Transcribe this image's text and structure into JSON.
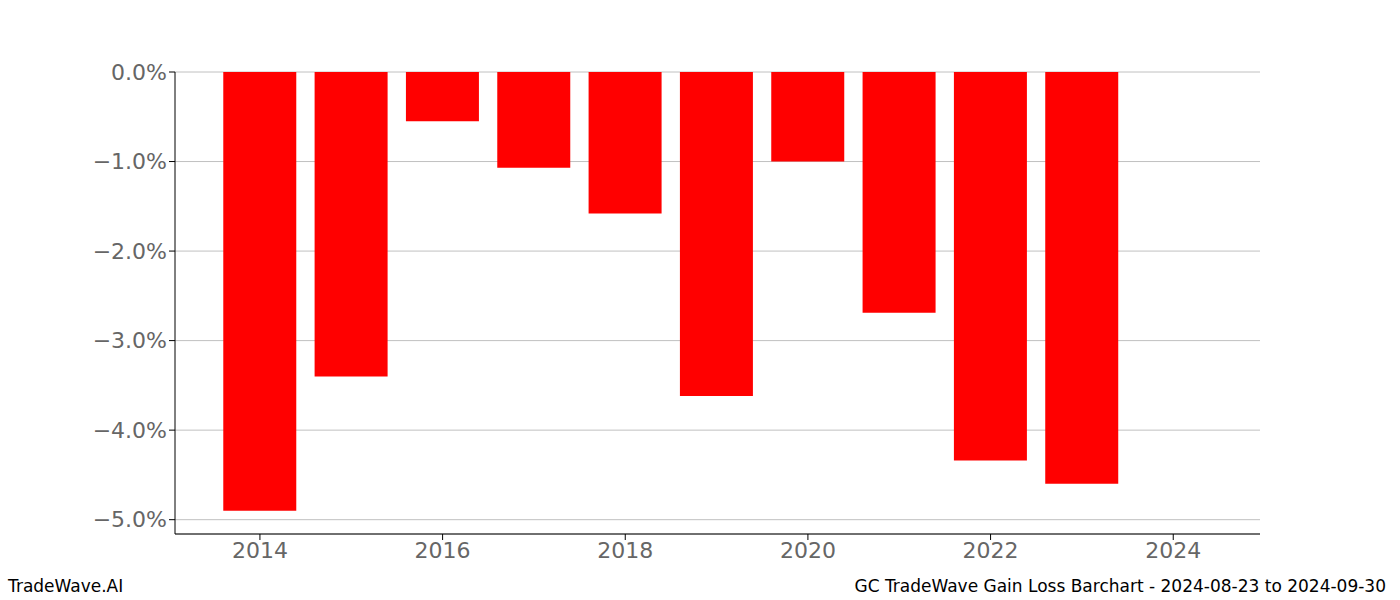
{
  "chart_data": {
    "type": "bar",
    "title": "GC TradeWave Gain Loss Barchart - 2024-08-23 to 2024-09-30",
    "annotation": "TradeWave.AI",
    "x": [
      2014,
      2015,
      2016,
      2017,
      2018,
      2019,
      2020,
      2021,
      2022,
      2023
    ],
    "values": [
      -4.9,
      -3.4,
      -0.55,
      -1.07,
      -1.58,
      -3.62,
      -1.0,
      -2.69,
      -4.34,
      -4.6
    ],
    "color": "#ff0000",
    "xlim": [
      2013.07,
      2024.95
    ],
    "xticks": [
      2014,
      2016,
      2018,
      2020,
      2022,
      2024
    ],
    "ylim": [
      -5.16,
      0
    ],
    "yticks": [
      {
        "value": 0,
        "label": "0.0%"
      },
      {
        "value": -1,
        "label": "−1.0%"
      },
      {
        "value": -2,
        "label": "−2.0%"
      },
      {
        "value": -3,
        "label": "−3.0%"
      },
      {
        "value": -4,
        "label": "−4.0%"
      },
      {
        "value": -5,
        "label": "−5.0%"
      }
    ],
    "grid": true
  }
}
